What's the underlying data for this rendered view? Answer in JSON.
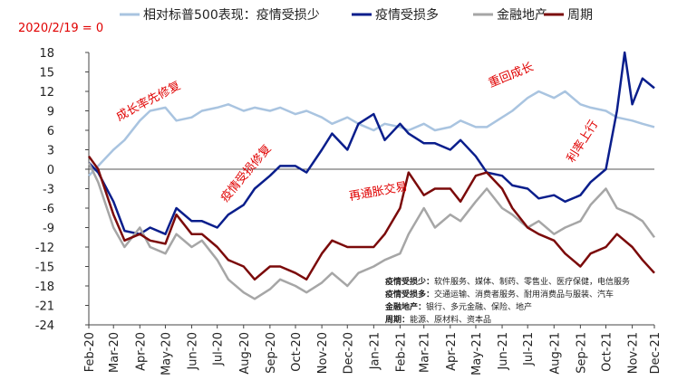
{
  "chart_data": {
    "type": "line",
    "subtitle": "2020/2/19 = 0",
    "x_start": "2020-02-19",
    "x_end": "2021-12-15",
    "ylim": [
      -24,
      18
    ],
    "yticks": [
      18,
      15,
      12,
      9,
      6,
      3,
      0,
      -3,
      -6,
      -9,
      -12,
      -15,
      -18,
      -21,
      -24
    ],
    "xticks": [
      {
        "label": "Feb-20",
        "date": "2020-02-19"
      },
      {
        "label": "Mar-20",
        "date": "2020-03-19"
      },
      {
        "label": "Apr-20",
        "date": "2020-04-19"
      },
      {
        "label": "May-20",
        "date": "2020-05-19"
      },
      {
        "label": "Jun-20",
        "date": "2020-06-19"
      },
      {
        "label": "Jul-20",
        "date": "2020-07-19"
      },
      {
        "label": "Aug-20",
        "date": "2020-08-19"
      },
      {
        "label": "Sep-20",
        "date": "2020-09-19"
      },
      {
        "label": "Oct-20",
        "date": "2020-10-19"
      },
      {
        "label": "Nov-20",
        "date": "2020-11-19"
      },
      {
        "label": "Dec-20",
        "date": "2020-12-19"
      },
      {
        "label": "Jan-21",
        "date": "2021-01-19"
      },
      {
        "label": "Feb-21",
        "date": "2021-02-19"
      },
      {
        "label": "Mar-21",
        "date": "2021-03-19"
      },
      {
        "label": "Apr-21",
        "date": "2021-04-19"
      },
      {
        "label": "May-21",
        "date": "2021-05-19"
      },
      {
        "label": "Jun-21",
        "date": "2021-06-19"
      },
      {
        "label": "Jul-21",
        "date": "2021-07-19"
      },
      {
        "label": "Aug-21",
        "date": "2021-08-19"
      },
      {
        "label": "Sep-21",
        "date": "2021-09-19"
      },
      {
        "label": "Oct-21",
        "date": "2021-10-19"
      },
      {
        "label": "Nov-21",
        "date": "2021-11-19"
      },
      {
        "label": "Dec-21",
        "date": "2021-12-15"
      }
    ],
    "legend_position": "top",
    "series": [
      {
        "name": "相对标普500表现：疫情受损少",
        "color": "#a9c4e0",
        "points": [
          [
            "2020-02-19",
            -1
          ],
          [
            "2020-03-01",
            0.5
          ],
          [
            "2020-03-19",
            3
          ],
          [
            "2020-04-01",
            4.5
          ],
          [
            "2020-04-19",
            7.5
          ],
          [
            "2020-05-01",
            9
          ],
          [
            "2020-05-19",
            9.5
          ],
          [
            "2020-06-01",
            7.5
          ],
          [
            "2020-06-19",
            8
          ],
          [
            "2020-07-01",
            9
          ],
          [
            "2020-07-19",
            9.5
          ],
          [
            "2020-08-01",
            10
          ],
          [
            "2020-08-19",
            9
          ],
          [
            "2020-09-01",
            9.5
          ],
          [
            "2020-09-19",
            9
          ],
          [
            "2020-10-01",
            9.5
          ],
          [
            "2020-10-19",
            8.5
          ],
          [
            "2020-11-01",
            9
          ],
          [
            "2020-11-19",
            8
          ],
          [
            "2020-12-01",
            7
          ],
          [
            "2020-12-19",
            8
          ],
          [
            "2021-01-01",
            7
          ],
          [
            "2021-01-19",
            6
          ],
          [
            "2021-02-01",
            7
          ],
          [
            "2021-02-19",
            6.5
          ],
          [
            "2021-03-01",
            6
          ],
          [
            "2021-03-19",
            7
          ],
          [
            "2021-04-01",
            6
          ],
          [
            "2021-04-19",
            6.5
          ],
          [
            "2021-05-01",
            7.5
          ],
          [
            "2021-05-19",
            6.5
          ],
          [
            "2021-06-01",
            6.5
          ],
          [
            "2021-06-19",
            8
          ],
          [
            "2021-07-01",
            9
          ],
          [
            "2021-07-19",
            11
          ],
          [
            "2021-08-01",
            12
          ],
          [
            "2021-08-19",
            11
          ],
          [
            "2021-09-01",
            12
          ],
          [
            "2021-09-19",
            10
          ],
          [
            "2021-10-01",
            9.5
          ],
          [
            "2021-10-19",
            9
          ],
          [
            "2021-11-01",
            8
          ],
          [
            "2021-11-19",
            7.5
          ],
          [
            "2021-12-01",
            7
          ],
          [
            "2021-12-15",
            6.5
          ]
        ]
      },
      {
        "name": "疫情受损多",
        "color": "#0a1e8c",
        "points": [
          [
            "2020-02-19",
            1
          ],
          [
            "2020-03-01",
            -0.5
          ],
          [
            "2020-03-19",
            -5
          ],
          [
            "2020-04-01",
            -9.5
          ],
          [
            "2020-04-19",
            -10
          ],
          [
            "2020-05-01",
            -9
          ],
          [
            "2020-05-19",
            -10
          ],
          [
            "2020-06-01",
            -6
          ],
          [
            "2020-06-19",
            -8
          ],
          [
            "2020-07-01",
            -8
          ],
          [
            "2020-07-19",
            -9
          ],
          [
            "2020-08-01",
            -7
          ],
          [
            "2020-08-19",
            -5.5
          ],
          [
            "2020-09-01",
            -3
          ],
          [
            "2020-09-19",
            -1
          ],
          [
            "2020-10-01",
            0.5
          ],
          [
            "2020-10-19",
            0.5
          ],
          [
            "2020-11-01",
            -0.5
          ],
          [
            "2020-11-19",
            3
          ],
          [
            "2020-12-01",
            5.5
          ],
          [
            "2020-12-19",
            3
          ],
          [
            "2021-01-01",
            7
          ],
          [
            "2021-01-19",
            8.5
          ],
          [
            "2021-02-01",
            4.5
          ],
          [
            "2021-02-19",
            7
          ],
          [
            "2021-03-01",
            5.5
          ],
          [
            "2021-03-19",
            4
          ],
          [
            "2021-04-01",
            4
          ],
          [
            "2021-04-19",
            3
          ],
          [
            "2021-05-01",
            4.5
          ],
          [
            "2021-05-19",
            2
          ],
          [
            "2021-06-01",
            -0.5
          ],
          [
            "2021-06-19",
            -1
          ],
          [
            "2021-07-01",
            -2.5
          ],
          [
            "2021-07-19",
            -3
          ],
          [
            "2021-08-01",
            -4.5
          ],
          [
            "2021-08-19",
            -4
          ],
          [
            "2021-09-01",
            -5
          ],
          [
            "2021-09-19",
            -4
          ],
          [
            "2021-10-01",
            -2
          ],
          [
            "2021-10-19",
            0
          ],
          [
            "2021-11-01",
            9
          ],
          [
            "2021-11-10",
            18
          ],
          [
            "2021-11-19",
            10
          ],
          [
            "2021-12-01",
            14
          ],
          [
            "2021-12-15",
            12.5
          ]
        ]
      },
      {
        "name": "金融地产",
        "color": "#a6a6a6",
        "points": [
          [
            "2020-02-19",
            1
          ],
          [
            "2020-03-01",
            -2
          ],
          [
            "2020-03-19",
            -9
          ],
          [
            "2020-04-01",
            -12
          ],
          [
            "2020-04-19",
            -9
          ],
          [
            "2020-05-01",
            -12
          ],
          [
            "2020-05-19",
            -13
          ],
          [
            "2020-06-01",
            -10
          ],
          [
            "2020-06-19",
            -12
          ],
          [
            "2020-07-01",
            -11
          ],
          [
            "2020-07-19",
            -14
          ],
          [
            "2020-08-01",
            -17
          ],
          [
            "2020-08-19",
            -19
          ],
          [
            "2020-09-01",
            -20
          ],
          [
            "2020-09-19",
            -18.5
          ],
          [
            "2020-10-01",
            -17
          ],
          [
            "2020-10-19",
            -18
          ],
          [
            "2020-11-01",
            -19
          ],
          [
            "2020-11-19",
            -17.5
          ],
          [
            "2020-12-01",
            -16
          ],
          [
            "2020-12-19",
            -18
          ],
          [
            "2021-01-01",
            -16
          ],
          [
            "2021-01-19",
            -15
          ],
          [
            "2021-02-01",
            -14
          ],
          [
            "2021-02-19",
            -13
          ],
          [
            "2021-03-01",
            -10
          ],
          [
            "2021-03-19",
            -6
          ],
          [
            "2021-04-01",
            -9
          ],
          [
            "2021-04-19",
            -7
          ],
          [
            "2021-05-01",
            -8
          ],
          [
            "2021-05-19",
            -5
          ],
          [
            "2021-06-01",
            -3
          ],
          [
            "2021-06-19",
            -6
          ],
          [
            "2021-07-01",
            -7
          ],
          [
            "2021-07-19",
            -9
          ],
          [
            "2021-08-01",
            -8
          ],
          [
            "2021-08-19",
            -10
          ],
          [
            "2021-09-01",
            -9
          ],
          [
            "2021-09-19",
            -8
          ],
          [
            "2021-10-01",
            -5.5
          ],
          [
            "2021-10-19",
            -3
          ],
          [
            "2021-11-01",
            -6
          ],
          [
            "2021-11-19",
            -7
          ],
          [
            "2021-12-01",
            -8
          ],
          [
            "2021-12-15",
            -10.5
          ]
        ]
      },
      {
        "name": "周期",
        "color": "#7b0a0a",
        "points": [
          [
            "2020-02-19",
            2
          ],
          [
            "2020-03-01",
            0
          ],
          [
            "2020-03-19",
            -7
          ],
          [
            "2020-04-01",
            -11
          ],
          [
            "2020-04-19",
            -10
          ],
          [
            "2020-05-01",
            -11
          ],
          [
            "2020-05-19",
            -11.5
          ],
          [
            "2020-06-01",
            -7
          ],
          [
            "2020-06-19",
            -10
          ],
          [
            "2020-07-01",
            -10
          ],
          [
            "2020-07-19",
            -12
          ],
          [
            "2020-08-01",
            -14
          ],
          [
            "2020-08-19",
            -15
          ],
          [
            "2020-09-01",
            -17
          ],
          [
            "2020-09-19",
            -15
          ],
          [
            "2020-10-01",
            -15
          ],
          [
            "2020-10-19",
            -16
          ],
          [
            "2020-11-01",
            -17
          ],
          [
            "2020-11-19",
            -13
          ],
          [
            "2020-12-01",
            -11
          ],
          [
            "2020-12-19",
            -12
          ],
          [
            "2021-01-01",
            -12
          ],
          [
            "2021-01-19",
            -12
          ],
          [
            "2021-02-01",
            -10
          ],
          [
            "2021-02-19",
            -6
          ],
          [
            "2021-03-01",
            -0.5
          ],
          [
            "2021-03-19",
            -4
          ],
          [
            "2021-04-01",
            -3
          ],
          [
            "2021-04-19",
            -3
          ],
          [
            "2021-05-01",
            -5
          ],
          [
            "2021-05-19",
            -1
          ],
          [
            "2021-06-01",
            -0.5
          ],
          [
            "2021-06-19",
            -3
          ],
          [
            "2021-07-01",
            -6
          ],
          [
            "2021-07-19",
            -9
          ],
          [
            "2021-08-01",
            -10
          ],
          [
            "2021-08-19",
            -11
          ],
          [
            "2021-09-01",
            -13
          ],
          [
            "2021-09-19",
            -15
          ],
          [
            "2021-10-01",
            -13
          ],
          [
            "2021-10-19",
            -12
          ],
          [
            "2021-11-01",
            -10
          ],
          [
            "2021-11-19",
            -12
          ],
          [
            "2021-12-01",
            -14
          ],
          [
            "2021-12-15",
            -16
          ]
        ]
      }
    ],
    "annotations": [
      {
        "text": "成长率先修复",
        "date": "2020-05-01",
        "y": 10
      },
      {
        "text": "重回成长",
        "date": "2021-07-01",
        "y": 14
      },
      {
        "text": "疫情受损修复",
        "date": "2020-08-25",
        "y": -1
      },
      {
        "text": "再通胀交易",
        "date": "2021-01-25",
        "y": -4
      },
      {
        "text": "利率上行",
        "date": "2021-09-25",
        "y": 4
      }
    ],
    "notes": [
      {
        "label": "疫情受损少：",
        "text": "软件服务、媒体、制药、零售业、医疗保健，电信服务"
      },
      {
        "label": "疫情受损多：",
        "text": "交通运输、消费者服务、耐用消费品与服装、汽车"
      },
      {
        "label": "金融地产：",
        "text": "银行、多元金融、保险、地产"
      },
      {
        "label": "周期：",
        "text": "能源、原材料、资本品"
      }
    ]
  }
}
